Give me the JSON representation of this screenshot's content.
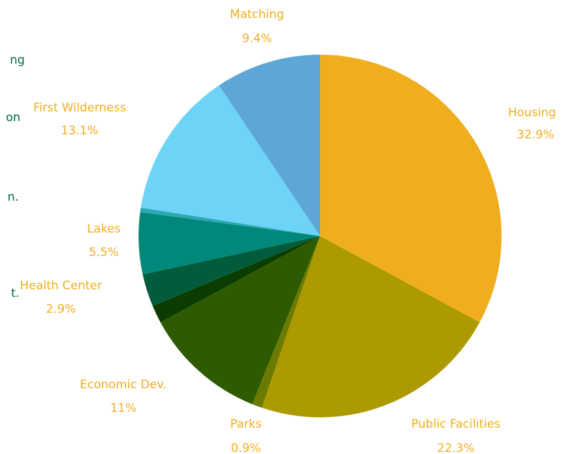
{
  "chart_data": {
    "type": "pie",
    "categories": [
      "Housing",
      "Public Facilities",
      "Parks",
      "Economic Dev.",
      null,
      "Health Center",
      "Lakes",
      null,
      "First Wilderness",
      "Matching"
    ],
    "values": [
      32.9,
      22.3,
      0.9,
      11,
      1.6,
      2.9,
      5.5,
      0.4,
      13.1,
      9.4
    ],
    "value_labels": [
      "32.9%",
      "22.3%",
      "0.9%",
      "11%",
      null,
      "2.9%",
      "5.5%",
      null,
      "13.1%",
      "9.4%"
    ],
    "colors": [
      "#f0ae1e",
      "#ad9900",
      "#6b7a00",
      "#2e5a00",
      "#0b3d00",
      "#005c3a",
      "#00897b",
      "#2aa9b0",
      "#6dd4f7",
      "#5fa6d8"
    ],
    "label_color": "#f0ae1e",
    "side_texts": [
      "ng",
      "on",
      "n.",
      "t."
    ],
    "side_text_color": "#006b40"
  }
}
